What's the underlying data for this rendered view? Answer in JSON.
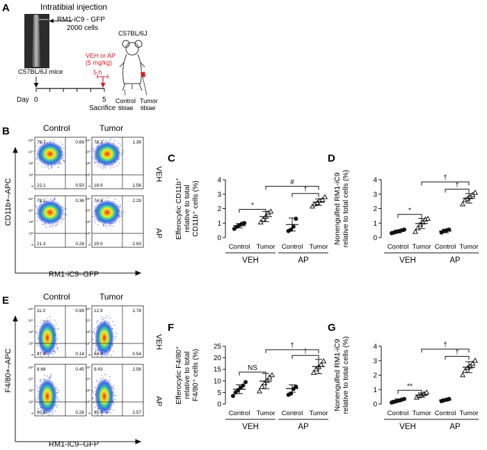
{
  "panel_labels": {
    "A": "A",
    "B": "B",
    "C": "C",
    "D": "D",
    "E": "E",
    "F": "F",
    "G": "G"
  },
  "schematic": {
    "title": "Intratibial injection",
    "injection_line1": "RM1-iC9 - GFP",
    "injection_line2": "2000 cells",
    "mouse_label": "C57BL/6J",
    "left_mouse_label": "C57BL/6J mice",
    "treatment_line1": "VEH or AP",
    "treatment_line2": "(5 mg/kg)",
    "treatment_time": "5 h",
    "day_label": "Day",
    "day_start": "0",
    "day_end": "5",
    "sacrifice": "Sacrifice",
    "control_tibiae_1": "Control",
    "control_tibiae_2": "tibiae",
    "tumor_tibiae_1": "Tumor",
    "tumor_tibiae_2": "tibiae",
    "treatment_color": "#d0202a"
  },
  "flow_B": {
    "col_labels": [
      "Control",
      "Tumor"
    ],
    "row_labels": [
      "VEH",
      "AP"
    ],
    "y_label": "CD11b+–APC",
    "x_label": "RM1-iC9–GFP",
    "quadrants": [
      {
        "tl": "76.7",
        "tr": "0.69",
        "bl": "22.1",
        "br": "0.50"
      },
      {
        "tl": "78.2",
        "tr": "1.38",
        "bl": "18.9",
        "br": "1.56"
      },
      {
        "tl": "78.1",
        "tr": "0.36",
        "bl": "21.3",
        "br": "0.28"
      },
      {
        "tl": "74.8",
        "tr": "2.29",
        "bl": "20.0",
        "br": "2.93"
      }
    ],
    "tick_labels": [
      "10⁵",
      "10⁴",
      "10³",
      "10²",
      "0"
    ]
  },
  "flow_E": {
    "col_labels": [
      "Control",
      "Tumor"
    ],
    "row_labels": [
      "VEH",
      "AP"
    ],
    "y_label": "F4/80+–APC",
    "x_label": "RM1-iC9–GFP",
    "quadrants": [
      {
        "tl": "11.0",
        "tr": "0.99",
        "bl": "87.8",
        "br": "0.18"
      },
      {
        "tl": "12.9",
        "tr": "1.78",
        "bl": "84.8",
        "br": "0.54"
      },
      {
        "tl": "8.68",
        "tr": "0.45",
        "bl": "90.6",
        "br": "0.26"
      },
      {
        "tl": "9.43",
        "tr": "2.58",
        "bl": "85.4",
        "br": "2.57"
      }
    ],
    "tick_labels": [
      "10⁵",
      "10⁴",
      "10³",
      "10²",
      "0"
    ]
  },
  "chart_data": [
    {
      "panel": "C",
      "type": "scatter",
      "ylabel_lines": [
        "Efferocytic CD11b⁺",
        "relative to total",
        "CD11b⁺ cells (%)"
      ],
      "ylim": [
        0,
        4
      ],
      "yticks": [
        0,
        1,
        2,
        3,
        4
      ],
      "categories": [
        "Control",
        "Tumor",
        "Control",
        "Tumor"
      ],
      "groups": [
        "VEH",
        "AP"
      ],
      "points": [
        [
          0.6,
          0.75,
          0.85,
          0.95,
          1.0
        ],
        [
          1.05,
          1.25,
          1.45,
          1.7,
          1.8
        ],
        [
          0.45,
          0.55,
          0.75,
          1.3
        ],
        [
          2.15,
          2.3,
          2.4,
          2.55,
          2.6,
          2.8
        ]
      ],
      "mean": [
        0.82,
        1.45,
        0.9,
        2.45
      ],
      "err": [
        0.15,
        0.35,
        0.45,
        0.22
      ],
      "brackets": [
        {
          "from": 0,
          "to": 1,
          "y": 1.95,
          "label": "*"
        },
        {
          "from": 2,
          "to": 3,
          "y": 3.05,
          "label": "†"
        },
        {
          "from": 1,
          "to": 3,
          "y": 3.55,
          "label": "#"
        }
      ]
    },
    {
      "panel": "D",
      "type": "scatter",
      "ylabel_lines": [
        "Nonengulfed RM1-iC9",
        "relative to total cells (%)"
      ],
      "ylim": [
        0,
        4
      ],
      "yticks": [
        0,
        1,
        2,
        3,
        4
      ],
      "categories": [
        "Control",
        "Tumor",
        "Control",
        "Tumor"
      ],
      "groups": [
        "VEH",
        "AP"
      ],
      "points": [
        [
          0.3,
          0.35,
          0.4,
          0.45,
          0.5,
          0.55
        ],
        [
          0.4,
          0.65,
          0.9,
          1.05,
          1.25,
          1.3
        ],
        [
          0.35,
          0.45,
          0.5,
          0.55
        ],
        [
          2.3,
          2.6,
          2.7,
          2.8,
          2.95,
          3.1
        ]
      ],
      "mean": [
        0.42,
        0.97,
        0.45,
        2.72
      ],
      "err": [
        0.1,
        0.35,
        0.12,
        0.33
      ],
      "brackets": [
        {
          "from": 0,
          "to": 1,
          "y": 1.6,
          "label": "*"
        },
        {
          "from": 2,
          "to": 3,
          "y": 3.35,
          "label": "†"
        },
        {
          "from": 1,
          "to": 3,
          "y": 3.85,
          "label": "†"
        }
      ]
    },
    {
      "panel": "F",
      "type": "scatter",
      "ylabel_lines": [
        "Efferocytic F4/80⁺",
        "relative to total",
        "F4/80⁺ cells (%)"
      ],
      "ylim": [
        0,
        25
      ],
      "yticks": [
        0,
        5,
        10,
        15,
        20,
        25
      ],
      "categories": [
        "Control",
        "Tumor",
        "Control",
        "Tumor"
      ],
      "groups": [
        "VEH",
        "AP"
      ],
      "points": [
        [
          3.5,
          5.0,
          6.0,
          7.0,
          8.0,
          9.5
        ],
        [
          5.5,
          7.5,
          9.0,
          10.0,
          11.5,
          12.5
        ],
        [
          4.0,
          4.5,
          6.5,
          7.5
        ],
        [
          13.5,
          15.0,
          16.0,
          17.0,
          18.5
        ]
      ],
      "mean": [
        6.4,
        9.9,
        6.7,
        16.2
      ],
      "err": [
        1.9,
        3.3,
        1.6,
        3.1
      ],
      "brackets": [
        {
          "from": 0,
          "to": 1,
          "y": 13.8,
          "label": "NS"
        },
        {
          "from": 2,
          "to": 3,
          "y": 21.0,
          "label": "†"
        },
        {
          "from": 1,
          "to": 3,
          "y": 23.5,
          "label": "†"
        }
      ]
    },
    {
      "panel": "G",
      "type": "scatter",
      "ylabel_lines": [
        "Nonengulfed RM1-iC9",
        "relative to total cells (%)"
      ],
      "ylim": [
        0,
        4
      ],
      "yticks": [
        0,
        1,
        2,
        3,
        4
      ],
      "categories": [
        "Control",
        "Tumor",
        "Control",
        "Tumor"
      ],
      "groups": [
        "VEH",
        "AP"
      ],
      "points": [
        [
          0.1,
          0.15,
          0.2,
          0.25,
          0.3,
          0.35
        ],
        [
          0.45,
          0.55,
          0.6,
          0.7,
          0.8
        ],
        [
          0.2,
          0.25,
          0.3,
          0.35
        ],
        [
          2.0,
          2.3,
          2.5,
          2.6,
          2.8,
          3.0
        ]
      ],
      "mean": [
        0.25,
        0.62,
        0.28,
        2.55
      ],
      "err": [
        0.1,
        0.15,
        0.08,
        0.38
      ],
      "brackets": [
        {
          "from": 0,
          "to": 1,
          "y": 0.95,
          "label": "**"
        },
        {
          "from": 2,
          "to": 3,
          "y": 3.3,
          "label": "†"
        },
        {
          "from": 1,
          "to": 3,
          "y": 3.8,
          "label": "†"
        }
      ]
    }
  ]
}
